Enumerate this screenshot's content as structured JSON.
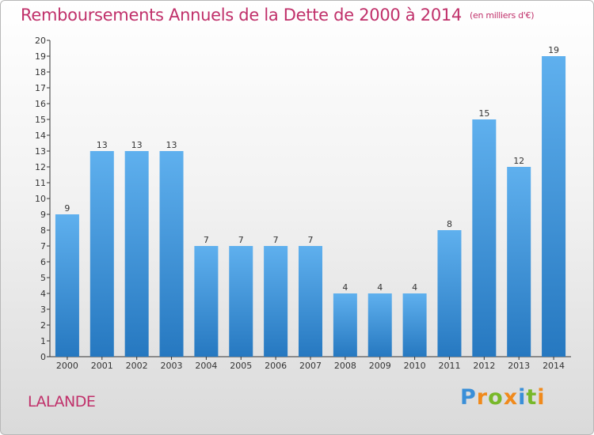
{
  "chart_data": {
    "type": "bar",
    "title": "Remboursements Annuels de la Dette de 2000 à 2014",
    "unit": "(en milliers d'€)",
    "categories": [
      "2000",
      "2001",
      "2002",
      "2003",
      "2004",
      "2005",
      "2006",
      "2007",
      "2008",
      "2009",
      "2010",
      "2011",
      "2012",
      "2013",
      "2014"
    ],
    "values": [
      9,
      13,
      13,
      13,
      7,
      7,
      7,
      7,
      4,
      4,
      4,
      8,
      15,
      12,
      19
    ],
    "ylim": [
      0,
      20
    ],
    "yticks": [
      0,
      1,
      2,
      3,
      4,
      5,
      6,
      7,
      8,
      9,
      10,
      11,
      12,
      13,
      14,
      15,
      16,
      17,
      18,
      19,
      20
    ],
    "xlabel": "",
    "ylabel": "",
    "grid": false,
    "bar_color": "#3a8fd8"
  },
  "commune": "LALANDE",
  "brand": {
    "letters": [
      "P",
      "r",
      "o",
      "x",
      "i",
      "t",
      "i"
    ],
    "colors": [
      "#3a8fd8",
      "#f08a1c",
      "#78b82a",
      "#f08a1c",
      "#3a8fd8",
      "#78b82a",
      "#f08a1c"
    ]
  },
  "accent_color": "#c0306a"
}
